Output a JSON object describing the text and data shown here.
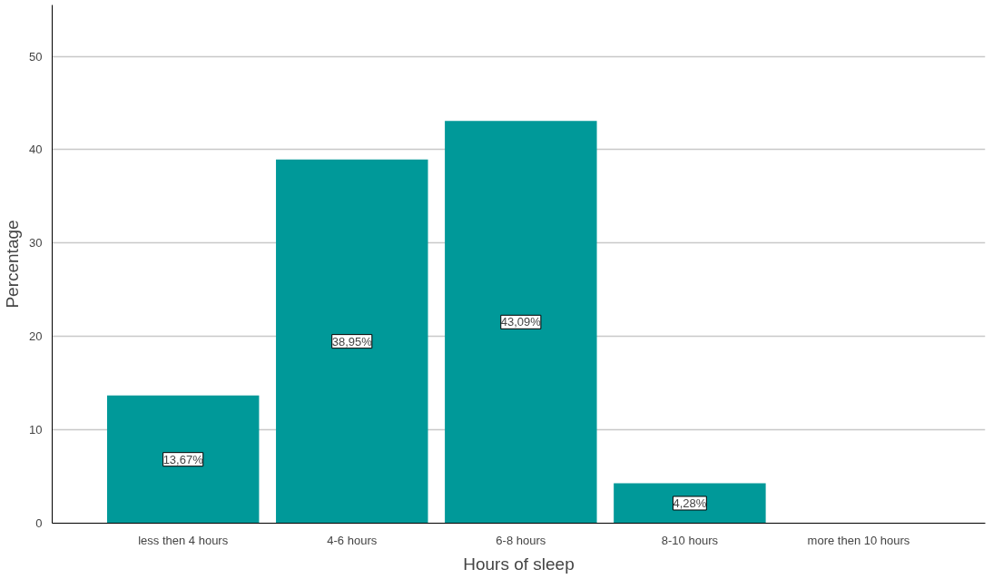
{
  "chart_data": {
    "type": "bar",
    "xlabel": "Hours of sleep",
    "ylabel": "Percentage",
    "categories": [
      "less then 4 hours",
      "4-6 hours",
      "6-8 hours",
      "8-10 hours",
      "more then 10 hours"
    ],
    "values": [
      13.67,
      38.95,
      43.09,
      4.28,
      0
    ],
    "value_labels": [
      "13,67%",
      "38,95%",
      "43,09%",
      "4,28%",
      null
    ],
    "color": "#009999",
    "ylim": [
      0,
      55.5
    ],
    "yticks": [
      0,
      10,
      20,
      30,
      40,
      50
    ],
    "grid": "y"
  }
}
